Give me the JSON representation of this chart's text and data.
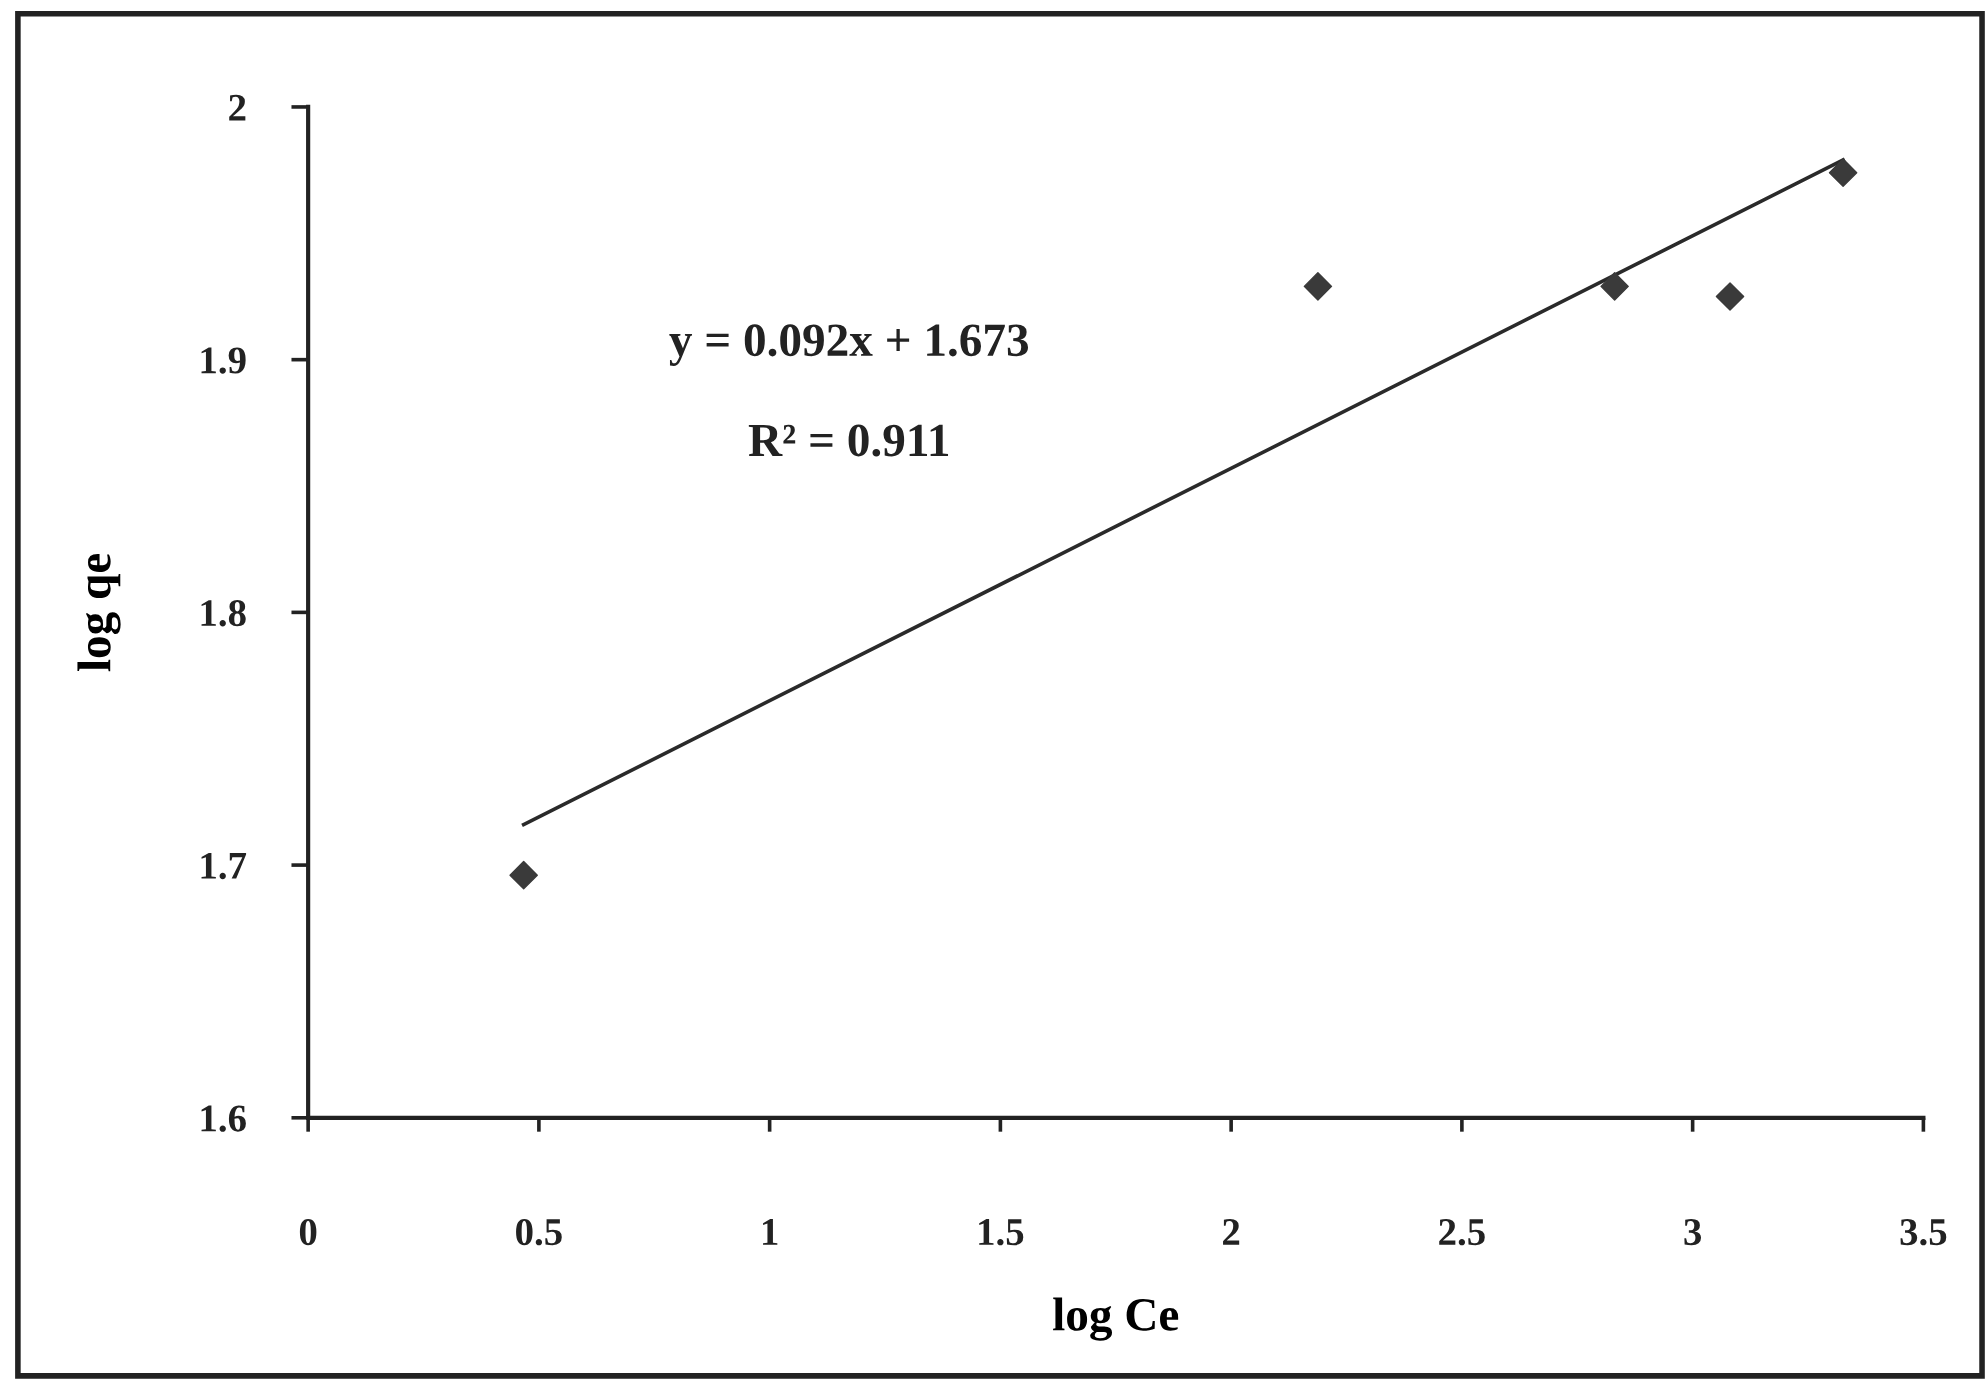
{
  "chart_data": {
    "type": "scatter",
    "xlabel": "log Ce",
    "ylabel": "log qe",
    "annotations": [
      "y = 0.092x + 1.673",
      "R² = 0.911"
    ],
    "xlim": [
      0,
      3.5
    ],
    "xticks": [
      0,
      0.5,
      1,
      1.5,
      2,
      2.5,
      3,
      3.5
    ],
    "ylim": [
      1.6,
      2
    ],
    "yticks": [
      1.6,
      1.7,
      1.8,
      1.9,
      2
    ],
    "marker": "diamond",
    "series": [
      {
        "color": "#3a3a3a",
        "x": [
          0.467,
          2.188,
          2.831,
          3.081,
          3.326
        ],
        "values": [
          1.696,
          1.929,
          1.929,
          1.925,
          1.974
        ]
      },
      {
        "type": "line",
        "color": "#2a2a2a",
        "marker": "none",
        "x": [
          0.467,
          3.326
        ],
        "values": [
          1.716,
          1.979
        ]
      }
    ]
  }
}
